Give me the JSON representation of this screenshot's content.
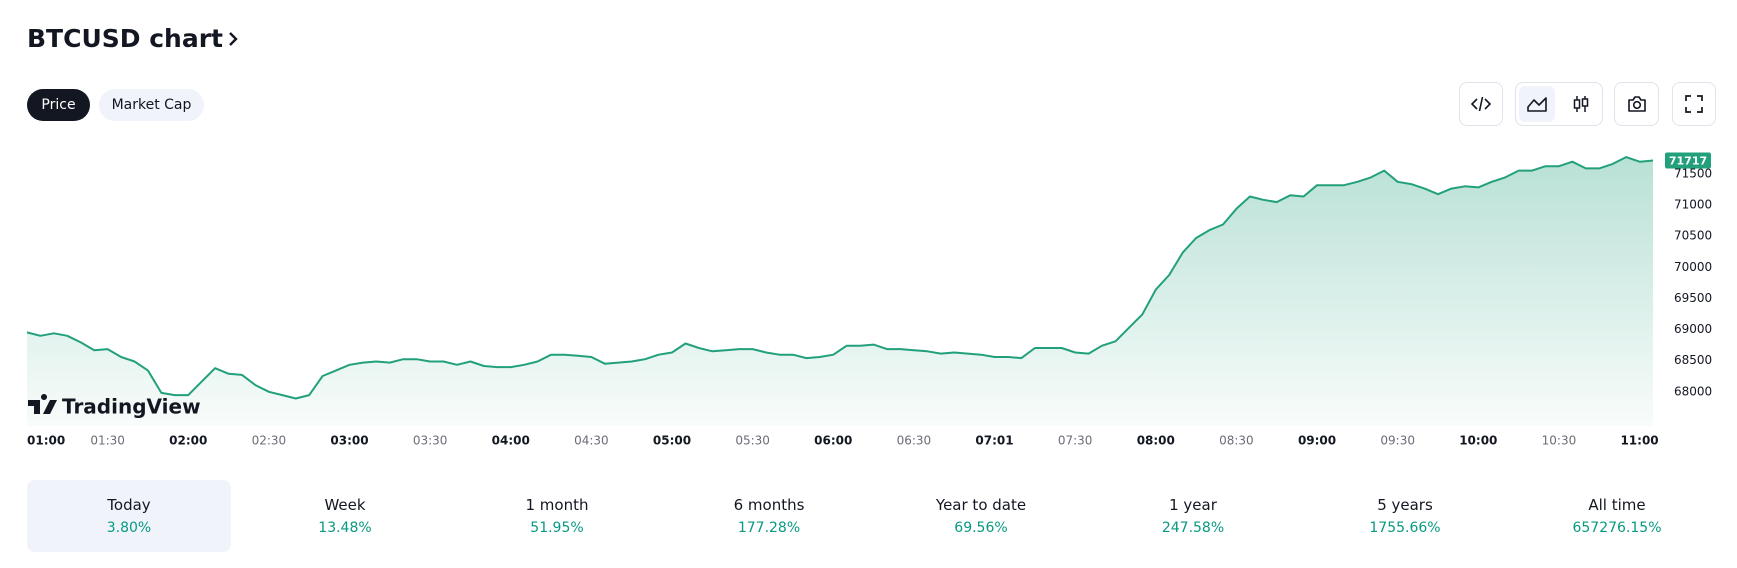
{
  "header": {
    "title": "BTCUSD chart"
  },
  "tabs": [
    "Price",
    "Market Cap"
  ],
  "branding": "TradingView",
  "chart_data": {
    "type": "line",
    "color": "#22a07c",
    "x": [
      "01:00",
      "01:05",
      "01:10",
      "01:15",
      "01:20",
      "01:25",
      "01:30",
      "01:35",
      "01:40",
      "01:45",
      "01:50",
      "01:55",
      "02:00",
      "02:05",
      "02:10",
      "02:15",
      "02:20",
      "02:25",
      "02:30",
      "02:35",
      "02:40",
      "02:45",
      "02:50",
      "02:55",
      "03:00",
      "03:05",
      "03:10",
      "03:15",
      "03:20",
      "03:25",
      "03:30",
      "03:35",
      "03:40",
      "03:45",
      "03:50",
      "03:55",
      "04:00",
      "04:05",
      "04:10",
      "04:15",
      "04:20",
      "04:25",
      "04:30",
      "04:35",
      "04:40",
      "04:45",
      "04:50",
      "04:55",
      "05:00",
      "05:05",
      "05:10",
      "05:15",
      "05:20",
      "05:25",
      "05:30",
      "05:35",
      "05:40",
      "05:45",
      "05:50",
      "05:55",
      "06:00",
      "06:05",
      "06:10",
      "06:15",
      "06:20",
      "06:25",
      "06:30",
      "06:35",
      "06:40",
      "06:45",
      "06:50",
      "06:55",
      "07:01",
      "07:05",
      "07:10",
      "07:15",
      "07:20",
      "07:25",
      "07:30",
      "07:35",
      "07:40",
      "07:45",
      "07:50",
      "07:55",
      "08:00",
      "08:05",
      "08:10",
      "08:15",
      "08:20",
      "08:25",
      "08:30",
      "08:35",
      "08:40",
      "08:45",
      "08:50",
      "08:55",
      "09:00",
      "09:05",
      "09:10",
      "09:15",
      "09:20",
      "09:25",
      "09:30",
      "09:35",
      "09:40",
      "09:45",
      "09:50",
      "09:55",
      "10:00",
      "10:05",
      "10:10",
      "10:15",
      "10:20",
      "10:25",
      "10:30",
      "10:35",
      "10:40",
      "10:45",
      "10:50",
      "10:55",
      "11:00",
      "11:05"
    ],
    "values": [
      68955,
      68900,
      68940,
      68900,
      68794,
      68668,
      68686,
      68559,
      68487,
      68343,
      67982,
      67946,
      67946,
      68163,
      68379,
      68289,
      68271,
      68108,
      68000,
      67946,
      67892,
      67946,
      68253,
      68343,
      68433,
      68469,
      68487,
      68469,
      68523,
      68523,
      68487,
      68487,
      68433,
      68487,
      68415,
      68397,
      68397,
      68433,
      68487,
      68596,
      68596,
      68578,
      68559,
      68451,
      68469,
      68487,
      68523,
      68596,
      68632,
      68776,
      68704,
      68650,
      68668,
      68686,
      68686,
      68632,
      68596,
      68596,
      68541,
      68559,
      68596,
      68740,
      68740,
      68758,
      68686,
      68686,
      68668,
      68650,
      68614,
      68632,
      68614,
      68596,
      68559,
      68559,
      68541,
      68704,
      68704,
      68704,
      68632,
      68614,
      68740,
      68812,
      69029,
      69245,
      69642,
      69876,
      70237,
      70472,
      70598,
      70688,
      70941,
      71139,
      71085,
      71049,
      71157,
      71139,
      71320,
      71320,
      71320,
      71374,
      71446,
      71554,
      71374,
      71338,
      71265,
      71175,
      71265,
      71302,
      71284,
      71374,
      71446,
      71554,
      71554,
      71626,
      71626,
      71698,
      71590,
      71590,
      71662,
      71771,
      71698,
      71717
    ],
    "ylim": [
      67450,
      71950
    ],
    "yticks": [
      68000,
      68500,
      69000,
      69500,
      70000,
      70500,
      71000,
      71500
    ],
    "xticks": [
      "01:00",
      "01:30",
      "02:00",
      "02:30",
      "03:00",
      "03:30",
      "04:00",
      "04:30",
      "05:00",
      "05:30",
      "06:00",
      "06:30",
      "07:01",
      "07:30",
      "08:00",
      "08:30",
      "09:00",
      "09:30",
      "10:00",
      "10:30",
      "11:00"
    ]
  },
  "periods": [
    {
      "label": "Today",
      "change": "3.80%"
    },
    {
      "label": "Week",
      "change": "13.48%"
    },
    {
      "label": "1 month",
      "change": "51.95%"
    },
    {
      "label": "6 months",
      "change": "177.28%"
    },
    {
      "label": "Year to date",
      "change": "69.56%"
    },
    {
      "label": "1 year",
      "change": "247.58%"
    },
    {
      "label": "5 years",
      "change": "1755.66%"
    },
    {
      "label": "All time",
      "change": "657276.15%"
    }
  ]
}
